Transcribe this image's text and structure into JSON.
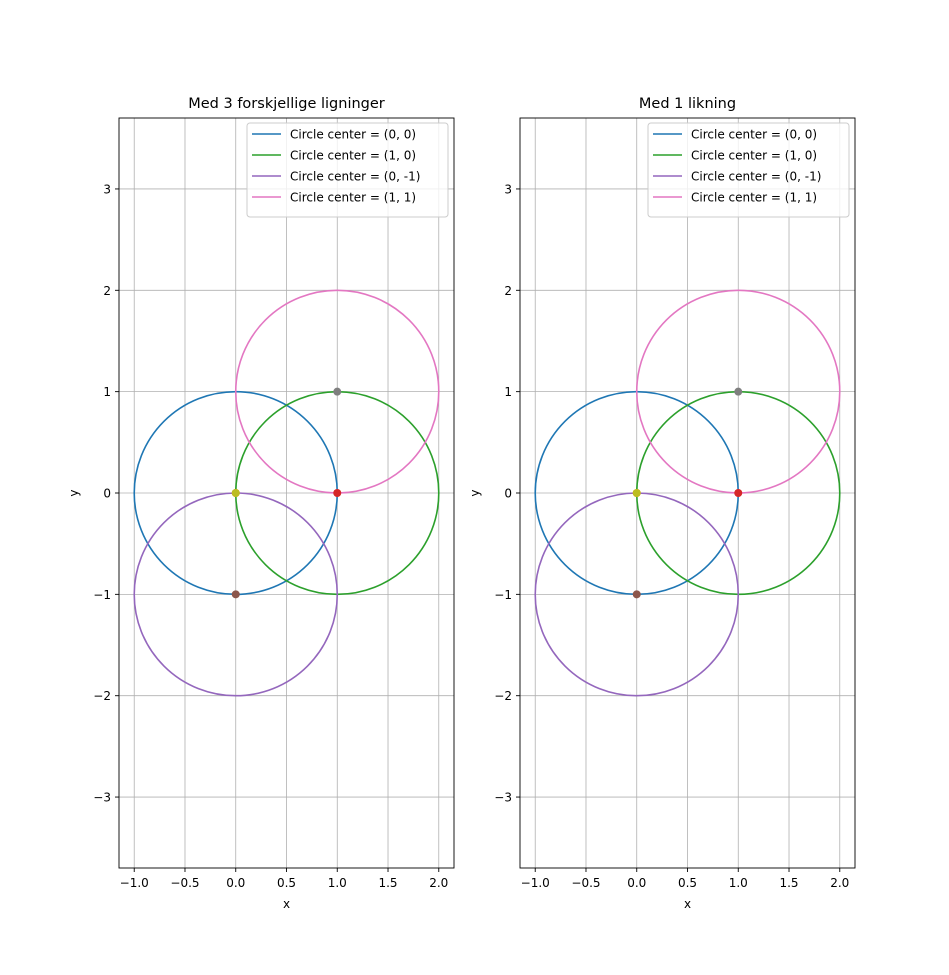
{
  "chart_data": [
    {
      "type": "line",
      "title": "Med 3 forskjellige ligninger",
      "xlabel": "x",
      "ylabel": "y",
      "xlim": [
        -1.15,
        2.15
      ],
      "ylim": [
        -3.7,
        3.7
      ],
      "xticks": [
        -1.0,
        -0.5,
        0.0,
        0.5,
        1.0,
        1.5,
        2.0
      ],
      "xtick_labels": [
        "−1.0",
        "−0.5",
        "0.0",
        "0.5",
        "1.0",
        "1.5",
        "2.0"
      ],
      "yticks": [
        -3,
        -2,
        -1,
        0,
        1,
        2,
        3
      ],
      "ytick_labels": [
        "−3",
        "−2",
        "−1",
        "0",
        "1",
        "2",
        "3"
      ],
      "grid": true,
      "legend_position": "upper right",
      "series": [
        {
          "name": "Circle center = (0, 0)",
          "shape": "circle",
          "center": [
            0,
            0
          ],
          "radius": 1,
          "color": "#1f77b4"
        },
        {
          "name": "Circle center = (1, 0)",
          "shape": "circle",
          "center": [
            1,
            0
          ],
          "radius": 1,
          "color": "#2ca02c"
        },
        {
          "name": "Circle center = (0, -1)",
          "shape": "circle",
          "center": [
            0,
            -1
          ],
          "radius": 1,
          "color": "#9467bd"
        },
        {
          "name": "Circle center = (1, 1)",
          "shape": "circle",
          "center": [
            1,
            1
          ],
          "radius": 1,
          "color": "#e377c2"
        }
      ],
      "points": [
        {
          "x": 0,
          "y": 0,
          "color": "#ff7f0e"
        },
        {
          "x": 0,
          "y": 0,
          "color": "#bcbd22"
        },
        {
          "x": 1,
          "y": 0,
          "color": "#d62728"
        },
        {
          "x": 0,
          "y": -1,
          "color": "#8c564b"
        },
        {
          "x": 1,
          "y": 1,
          "color": "#7f7f7f"
        }
      ]
    },
    {
      "type": "line",
      "title": "Med 1 likning",
      "xlabel": "x",
      "ylabel": "y",
      "xlim": [
        -1.15,
        2.15
      ],
      "ylim": [
        -3.7,
        3.7
      ],
      "xticks": [
        -1.0,
        -0.5,
        0.0,
        0.5,
        1.0,
        1.5,
        2.0
      ],
      "xtick_labels": [
        "−1.0",
        "−0.5",
        "0.0",
        "0.5",
        "1.0",
        "1.5",
        "2.0"
      ],
      "yticks": [
        -3,
        -2,
        -1,
        0,
        1,
        2,
        3
      ],
      "ytick_labels": [
        "−3",
        "−2",
        "−1",
        "0",
        "1",
        "2",
        "3"
      ],
      "grid": true,
      "legend_position": "upper right",
      "series": [
        {
          "name": "Circle center = (0, 0)",
          "shape": "circle",
          "center": [
            0,
            0
          ],
          "radius": 1,
          "color": "#1f77b4"
        },
        {
          "name": "Circle center = (1, 0)",
          "shape": "circle",
          "center": [
            1,
            0
          ],
          "radius": 1,
          "color": "#2ca02c"
        },
        {
          "name": "Circle center = (0, -1)",
          "shape": "circle",
          "center": [
            0,
            -1
          ],
          "radius": 1,
          "color": "#9467bd"
        },
        {
          "name": "Circle center = (1, 1)",
          "shape": "circle",
          "center": [
            1,
            1
          ],
          "radius": 1,
          "color": "#e377c2"
        }
      ],
      "points": [
        {
          "x": 0,
          "y": 0,
          "color": "#ff7f0e"
        },
        {
          "x": 0,
          "y": 0,
          "color": "#bcbd22"
        },
        {
          "x": 1,
          "y": 0,
          "color": "#d62728"
        },
        {
          "x": 0,
          "y": -1,
          "color": "#8c564b"
        },
        {
          "x": 1,
          "y": 1,
          "color": "#7f7f7f"
        }
      ]
    }
  ]
}
